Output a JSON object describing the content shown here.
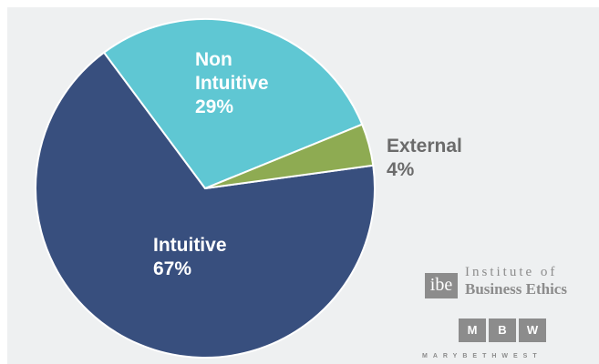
{
  "chart_data": {
    "type": "pie",
    "slices": [
      {
        "label_lines": [
          "Intuitive"
        ],
        "percent_label": "67%",
        "value": 67,
        "color": "#384f7e",
        "label_color": "#ffffff"
      },
      {
        "label_lines": [
          "Non",
          "Intuitive"
        ],
        "percent_label": "29%",
        "value": 29,
        "color": "#5fc7d3",
        "label_color": "#ffffff"
      },
      {
        "label_lines": [
          "External"
        ],
        "percent_label": "4%",
        "value": 4,
        "color": "#8eab52",
        "label_color": "#6b6b6b"
      }
    ],
    "title": ""
  },
  "logos": {
    "ibe": {
      "mark": "ibe",
      "line1": "Institute of",
      "line2": "Business Ethics"
    },
    "mbw": {
      "letters": [
        "M",
        "B",
        "W"
      ],
      "subtitle": "MARYBETHWEST"
    }
  },
  "colors": {
    "background": "#eef0f1",
    "logo_gray": "#8c8c8c"
  }
}
